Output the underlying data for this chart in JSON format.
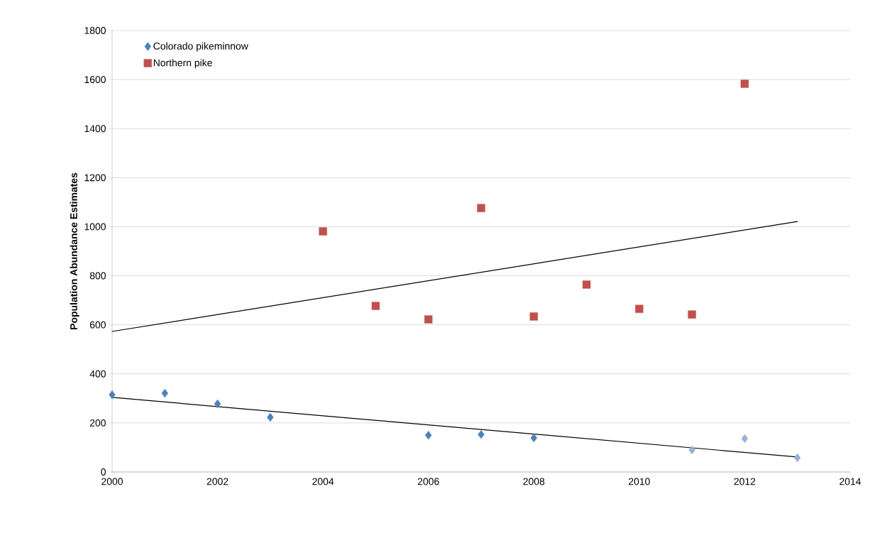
{
  "chart_data": {
    "type": "scatter",
    "ylabel": "Population Abundance Estimates",
    "xlim": [
      2000,
      2014
    ],
    "ylim": [
      0,
      1800
    ],
    "xticks": [
      2000,
      2002,
      2004,
      2006,
      2008,
      2010,
      2012,
      2014
    ],
    "yticks": [
      0,
      200,
      400,
      600,
      800,
      1000,
      1200,
      1400,
      1600,
      1800
    ],
    "grid": "y",
    "legend": "top left",
    "series": [
      {
        "name": "Colorado pikeminnow",
        "color": "#4f81bd",
        "marker": "diamond",
        "x": [
          2000,
          2001,
          2002,
          2003,
          2006,
          2007,
          2008
        ],
        "values": [
          315,
          321,
          278,
          223,
          150,
          153,
          139
        ]
      },
      {
        "name": "Northern pike",
        "color": "#c0504d",
        "marker": "square",
        "x": [
          2004,
          2005,
          2006,
          2007,
          2008,
          2009,
          2010,
          2011,
          2012
        ],
        "values": [
          981,
          677,
          622,
          1076,
          634,
          764,
          665,
          642,
          1583
        ]
      },
      {
        "color": "#95b3d7",
        "marker": "diamond",
        "x": [
          2011,
          2012,
          2013
        ],
        "values": [
          90,
          136,
          58
        ]
      },
      {
        "type": "line",
        "color": "#000000",
        "x": [
          2000,
          2013
        ],
        "values": [
          573,
          1021
        ]
      },
      {
        "type": "line",
        "color": "#000000",
        "x": [
          2000,
          2013
        ],
        "values": [
          304,
          61
        ]
      }
    ]
  }
}
